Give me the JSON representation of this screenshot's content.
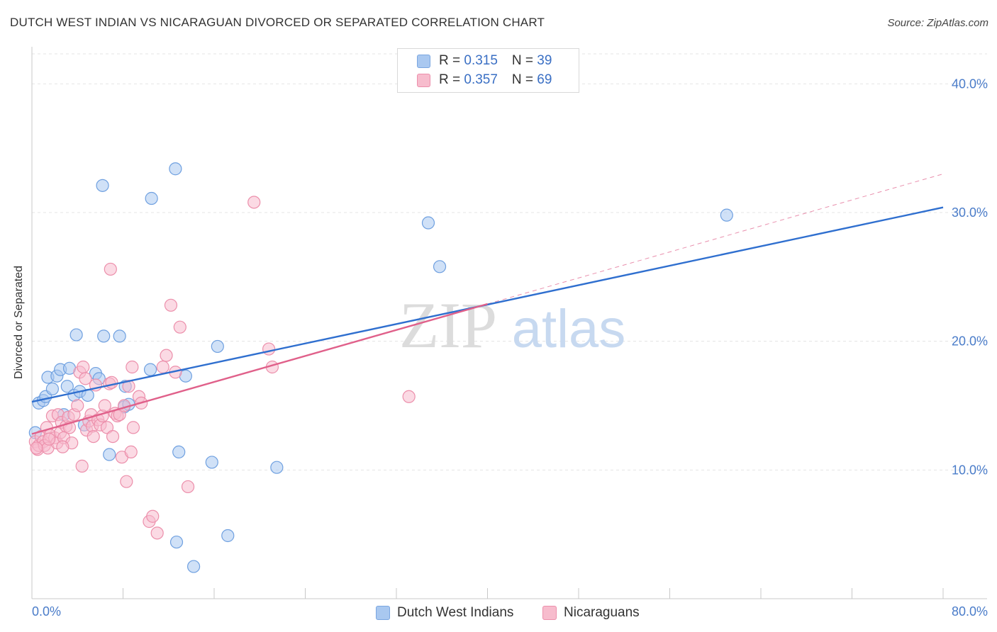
{
  "header": {
    "title": "DUTCH WEST INDIAN VS NICARAGUAN DIVORCED OR SEPARATED CORRELATION CHART",
    "source": "Source: ZipAtlas.com"
  },
  "watermark": {
    "zip": "ZIP",
    "atlas": "atlas"
  },
  "legend": {
    "rows": [
      {
        "r_label": "R = ",
        "r_value": "0.315",
        "n_label": "N = ",
        "n_value": "39",
        "color": "#a9c8f0",
        "border": "#7aa6e0"
      },
      {
        "r_label": "R = ",
        "r_value": "0.357",
        "n_label": "N = ",
        "n_value": "69",
        "color": "#f7bccd",
        "border": "#ec8fab"
      }
    ]
  },
  "bottom_legend": {
    "items": [
      {
        "label": "Dutch West Indians",
        "color": "#a9c8f0",
        "border": "#7aa6e0"
      },
      {
        "label": "Nicaraguans",
        "color": "#f7bccd",
        "border": "#ec8fab"
      }
    ]
  },
  "chart_data": {
    "type": "scatter",
    "title": "DUTCH WEST INDIAN VS NICARAGUAN DIVORCED OR SEPARATED CORRELATION CHART",
    "xlabel": "",
    "ylabel": "Divorced or Separated",
    "xlim": [
      0,
      80
    ],
    "ylim": [
      0,
      42
    ],
    "x_tick_labels": [
      "0.0%",
      "80.0%"
    ],
    "y_ticks": [
      10,
      20,
      30,
      40
    ],
    "y_tick_labels": [
      "10.0%",
      "20.0%",
      "30.0%",
      "40.0%"
    ],
    "grid": true,
    "legend_position": "top-center",
    "series": [
      {
        "name": "Dutch West Indians",
        "color": "#6fa0e0",
        "fill": "#a9c8f0",
        "trend_color": "#2f6fcf",
        "trend": {
          "x": [
            0,
            80
          ],
          "y": [
            15.3,
            30.4
          ]
        },
        "points": [
          [
            0.3,
            12.9
          ],
          [
            0.6,
            15.2
          ],
          [
            1.0,
            15.4
          ],
          [
            1.2,
            15.7
          ],
          [
            1.4,
            17.2
          ],
          [
            1.8,
            16.3
          ],
          [
            2.2,
            17.3
          ],
          [
            2.5,
            17.8
          ],
          [
            2.8,
            14.3
          ],
          [
            3.1,
            16.5
          ],
          [
            3.3,
            17.9
          ],
          [
            3.7,
            15.8
          ],
          [
            3.9,
            20.5
          ],
          [
            4.2,
            16.1
          ],
          [
            4.9,
            15.8
          ],
          [
            4.6,
            13.5
          ],
          [
            5.6,
            17.5
          ],
          [
            5.9,
            17.1
          ],
          [
            6.2,
            32.1
          ],
          [
            6.3,
            20.4
          ],
          [
            6.8,
            11.2
          ],
          [
            7.7,
            20.4
          ],
          [
            8.1,
            14.9
          ],
          [
            8.2,
            16.5
          ],
          [
            8.5,
            15.1
          ],
          [
            10.5,
            31.1
          ],
          [
            10.4,
            17.8
          ],
          [
            12.6,
            33.4
          ],
          [
            12.7,
            4.4
          ],
          [
            12.9,
            11.4
          ],
          [
            13.5,
            17.3
          ],
          [
            14.2,
            2.5
          ],
          [
            15.8,
            10.6
          ],
          [
            16.3,
            19.6
          ],
          [
            17.2,
            4.9
          ],
          [
            21.5,
            10.2
          ],
          [
            34.8,
            29.2
          ],
          [
            35.8,
            25.8
          ],
          [
            61.0,
            29.8
          ]
        ]
      },
      {
        "name": "Nicaraguans",
        "color": "#ec8fab",
        "fill": "#f7bccd",
        "trend_color": "#e0608a",
        "trend": {
          "x": [
            0,
            40
          ],
          "y": [
            12.8,
            22.9
          ]
        },
        "trend_dashed": {
          "x": [
            40,
            80
          ],
          "y": [
            22.9,
            33.0
          ]
        },
        "points": [
          [
            0.3,
            12.2
          ],
          [
            0.5,
            11.6
          ],
          [
            0.6,
            11.9
          ],
          [
            0.8,
            12.6
          ],
          [
            1.0,
            12.2
          ],
          [
            1.1,
            11.9
          ],
          [
            1.3,
            13.3
          ],
          [
            1.4,
            11.7
          ],
          [
            1.6,
            12.7
          ],
          [
            1.8,
            14.2
          ],
          [
            2.0,
            12.5
          ],
          [
            2.2,
            12.1
          ],
          [
            2.3,
            14.3
          ],
          [
            2.5,
            12.9
          ],
          [
            2.6,
            13.7
          ],
          [
            2.8,
            12.5
          ],
          [
            3.0,
            13.4
          ],
          [
            3.2,
            14.1
          ],
          [
            3.3,
            13.3
          ],
          [
            3.5,
            12.1
          ],
          [
            3.7,
            14.3
          ],
          [
            4.0,
            15.0
          ],
          [
            4.2,
            17.6
          ],
          [
            4.4,
            10.3
          ],
          [
            4.5,
            18.0
          ],
          [
            4.7,
            17.1
          ],
          [
            4.8,
            13.1
          ],
          [
            5.0,
            13.8
          ],
          [
            5.2,
            14.3
          ],
          [
            5.3,
            13.4
          ],
          [
            5.4,
            12.6
          ],
          [
            5.6,
            16.6
          ],
          [
            5.8,
            13.9
          ],
          [
            6.0,
            13.5
          ],
          [
            6.2,
            14.2
          ],
          [
            6.4,
            15.0
          ],
          [
            6.6,
            13.3
          ],
          [
            6.8,
            16.7
          ],
          [
            6.9,
            25.6
          ],
          [
            7.0,
            16.8
          ],
          [
            7.1,
            12.6
          ],
          [
            7.3,
            14.4
          ],
          [
            7.5,
            14.2
          ],
          [
            7.7,
            14.3
          ],
          [
            7.9,
            11.0
          ],
          [
            8.1,
            15.0
          ],
          [
            8.3,
            9.1
          ],
          [
            8.5,
            16.5
          ],
          [
            8.7,
            11.4
          ],
          [
            8.8,
            18.0
          ],
          [
            8.9,
            13.3
          ],
          [
            9.4,
            15.7
          ],
          [
            9.6,
            15.2
          ],
          [
            10.3,
            6.0
          ],
          [
            10.6,
            6.4
          ],
          [
            11.0,
            5.1
          ],
          [
            11.5,
            18.0
          ],
          [
            11.8,
            18.9
          ],
          [
            12.2,
            22.8
          ],
          [
            12.6,
            17.6
          ],
          [
            13.0,
            21.1
          ],
          [
            13.7,
            8.7
          ],
          [
            19.5,
            30.8
          ],
          [
            20.8,
            19.4
          ],
          [
            21.1,
            18.0
          ],
          [
            33.1,
            15.7
          ],
          [
            0.4,
            11.7
          ],
          [
            1.5,
            12.4
          ],
          [
            2.7,
            11.8
          ]
        ]
      }
    ]
  }
}
